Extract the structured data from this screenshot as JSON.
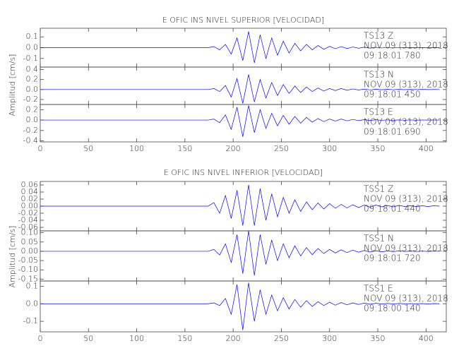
{
  "chart_data": [
    {
      "type": "line",
      "title": "E OFIC INS NIVEL SUPERIOR [VELOCIDAD]",
      "y_label": "Amplitud [cm/s]",
      "color": "#0000ff",
      "xlim": [
        0,
        421
      ],
      "xticks": [
        0,
        50,
        100,
        150,
        200,
        250,
        300,
        350,
        400
      ],
      "x": [
        0,
        6,
        12,
        18,
        24,
        30,
        36,
        42,
        48,
        54,
        60,
        66,
        72,
        78,
        84,
        90,
        96,
        102,
        108,
        114,
        120,
        126,
        132,
        138,
        144,
        150,
        156,
        162,
        168,
        174,
        180,
        186,
        192,
        198,
        204,
        210,
        216,
        222,
        228,
        234,
        240,
        246,
        252,
        258,
        264,
        270,
        276,
        282,
        288,
        294,
        300,
        306,
        312,
        318,
        324,
        330,
        336,
        342,
        348,
        354,
        360,
        366,
        372,
        378,
        384,
        390,
        396,
        402,
        408,
        414
      ],
      "panels": [
        {
          "ylim": [
            -0.18,
            0.18
          ],
          "yticks": [
            0.1,
            {
              "value": 0,
              "label": "0.0"
            },
            -0.1
          ],
          "annotations": [
            "TS13   Z",
            "NOV 09 (313), 2018",
            "09:18:01.780"
          ],
          "values": [
            0,
            0,
            0,
            0,
            0,
            0,
            0,
            0,
            0,
            0,
            0,
            0,
            0,
            0,
            0,
            0,
            0,
            0,
            0,
            0,
            0,
            0,
            0,
            0,
            0,
            0,
            0,
            0,
            0,
            0,
            0.01,
            -0.02,
            0.03,
            -0.06,
            0.09,
            -0.12,
            0.15,
            -0.14,
            0.12,
            -0.1,
            0.09,
            -0.07,
            0.06,
            -0.05,
            0.04,
            -0.03,
            0.03,
            -0.02,
            0.02,
            -0.015,
            0.012,
            -0.01,
            0.01,
            -0.008,
            0.006,
            -0.005,
            0.004,
            -0.004,
            0.003,
            -0.003,
            0.002,
            -0.002,
            0.002,
            -0.001,
            0.001,
            -0.001,
            0.001,
            -0.001,
            0.001,
            0
          ]
        },
        {
          "ylim": [
            -0.3,
            0.45
          ],
          "yticks": [
            0.4,
            0.2,
            {
              "value": 0,
              "label": "0.0"
            },
            -0.2
          ],
          "annotations": [
            "TS13   N",
            "NOV 09 (313), 2018",
            "09:18:01.450"
          ],
          "values": [
            0,
            0,
            0,
            0,
            0,
            0,
            0,
            0,
            0,
            0,
            0,
            0,
            0,
            0,
            0,
            0,
            0,
            0,
            0,
            0,
            0,
            0,
            0,
            0,
            0,
            0,
            0,
            0,
            0,
            0,
            0.02,
            -0.04,
            0.08,
            -0.15,
            0.22,
            -0.28,
            0.3,
            -0.25,
            0.2,
            -0.17,
            0.14,
            -0.12,
            0.1,
            -0.08,
            0.07,
            -0.06,
            0.05,
            -0.04,
            0.03,
            -0.03,
            0.02,
            -0.02,
            0.02,
            -0.015,
            0.012,
            -0.01,
            0.008,
            -0.007,
            0.006,
            -0.005,
            0.004,
            -0.004,
            0.003,
            -0.003,
            0.002,
            -0.002,
            0.002,
            -0.001,
            0.001,
            0
          ]
        },
        {
          "ylim": [
            -0.42,
            0.3
          ],
          "yticks": [
            0.2,
            {
              "value": 0,
              "label": "0.0"
            },
            -0.2,
            -0.4
          ],
          "annotations": [
            "TS13   E",
            "NOV 09 (313), 2018",
            "09:18:01.690"
          ],
          "values": [
            0,
            0,
            0,
            0,
            0,
            0,
            0,
            0,
            0,
            0,
            0,
            0,
            0,
            0,
            0,
            0,
            0,
            0,
            0,
            0,
            0,
            0,
            0,
            0,
            0,
            0,
            0,
            0,
            0,
            0,
            0.02,
            -0.05,
            0.1,
            -0.18,
            0.25,
            -0.32,
            0.28,
            -0.24,
            0.2,
            -0.16,
            0.13,
            -0.11,
            0.09,
            -0.08,
            0.07,
            -0.06,
            0.05,
            -0.04,
            0.03,
            -0.03,
            0.02,
            -0.02,
            0.02,
            -0.015,
            0.012,
            -0.01,
            0.008,
            -0.007,
            0.006,
            -0.005,
            0.004,
            -0.004,
            0.003,
            -0.003,
            0.002,
            -0.002,
            0.002,
            -0.001,
            0.001,
            0
          ]
        }
      ]
    },
    {
      "type": "line",
      "title": "E OFIC INS NIVEL INFERIOR [VELOCIDAD]",
      "y_label": "Amplitud [cm/s]",
      "color": "#0000ff",
      "xlim": [
        0,
        421
      ],
      "xticks": [
        0,
        50,
        100,
        150,
        200,
        250,
        300,
        350,
        400
      ],
      "x": [
        0,
        6,
        12,
        18,
        24,
        30,
        36,
        42,
        48,
        54,
        60,
        66,
        72,
        78,
        84,
        90,
        96,
        102,
        108,
        114,
        120,
        126,
        132,
        138,
        144,
        150,
        156,
        162,
        168,
        174,
        180,
        186,
        192,
        198,
        204,
        210,
        216,
        222,
        228,
        234,
        240,
        246,
        252,
        258,
        264,
        270,
        276,
        282,
        288,
        294,
        300,
        306,
        312,
        318,
        324,
        330,
        336,
        342,
        348,
        354,
        360,
        366,
        372,
        378,
        384,
        390,
        396,
        402,
        408,
        414
      ],
      "panels": [
        {
          "ylim": [
            -0.07,
            0.07
          ],
          "yticks": [
            0.06,
            0.04,
            0.02,
            {
              "value": 0,
              "label": "0.00"
            },
            -0.02,
            -0.04,
            -0.06
          ],
          "annotations": [
            "TSS1   Z",
            "NOV 09 (313), 2018",
            "09:18:01.440"
          ],
          "values": [
            0,
            0,
            0,
            0,
            0,
            0,
            0,
            0,
            0,
            0,
            0,
            0,
            0,
            0,
            0,
            0,
            0,
            0,
            0,
            0,
            0,
            0,
            0,
            0,
            0,
            0,
            0,
            0,
            0,
            0,
            0.01,
            -0.02,
            0.03,
            -0.035,
            0.045,
            -0.055,
            0.06,
            -0.055,
            0.05,
            -0.04,
            0.035,
            -0.03,
            0.025,
            -0.02,
            0.018,
            -0.015,
            0.012,
            -0.01,
            0.009,
            -0.008,
            0.007,
            -0.006,
            0.005,
            -0.005,
            0.004,
            -0.004,
            0.003,
            -0.003,
            0.003,
            -0.002,
            0.002,
            -0.002,
            0.002,
            -0.001,
            0.001,
            -0.001,
            0.001,
            -0.001,
            0.001,
            0
          ]
        },
        {
          "ylim": [
            -0.16,
            0.11
          ],
          "yticks": [
            {
              "value": 0.1,
              "label": "0.10"
            },
            0.05,
            {
              "value": 0,
              "label": "0.00"
            },
            -0.05,
            {
              "value": -0.1,
              "label": "-0.10"
            },
            -0.15
          ],
          "annotations": [
            "TSS1   N",
            "NOV 09 (313), 2018",
            "09:18:01.720"
          ],
          "values": [
            0,
            0,
            0,
            0,
            0,
            0,
            0,
            0,
            0,
            0,
            0,
            0,
            0,
            0,
            0,
            0,
            0,
            0,
            0,
            0,
            0,
            0,
            0,
            0,
            0,
            0,
            0,
            0,
            0,
            0,
            0.01,
            -0.02,
            0.04,
            -0.06,
            0.09,
            -0.12,
            0.11,
            -0.13,
            0.09,
            -0.07,
            0.06,
            -0.05,
            0.04,
            -0.035,
            0.03,
            -0.025,
            0.02,
            -0.018,
            0.015,
            -0.012,
            0.01,
            -0.009,
            0.008,
            -0.007,
            0.006,
            -0.005,
            0.004,
            -0.004,
            0.003,
            -0.003,
            0.002,
            -0.002,
            0.002,
            -0.001,
            0.001,
            -0.001,
            0.001,
            -0.001,
            0.001,
            0
          ]
        },
        {
          "ylim": [
            -0.16,
            0.13
          ],
          "yticks": [
            0.1,
            {
              "value": 0,
              "label": "0.0"
            },
            -0.1
          ],
          "annotations": [
            "TSS1   E",
            "NOV 09 (313), 2018",
            "09:18:00.140"
          ],
          "values": [
            0,
            0,
            0,
            0,
            0,
            0,
            0,
            0,
            0,
            0,
            0,
            0,
            0,
            0,
            0,
            0,
            0,
            0,
            0,
            0,
            0,
            0,
            0,
            0,
            0,
            0,
            0,
            0,
            0,
            0,
            0.005,
            -0.01,
            0.03,
            -0.06,
            0.11,
            -0.15,
            0.12,
            -0.1,
            0.08,
            -0.06,
            0.05,
            -0.04,
            0.035,
            -0.03,
            0.025,
            -0.02,
            0.018,
            -0.015,
            0.012,
            -0.01,
            0.009,
            -0.008,
            0.007,
            -0.006,
            0.005,
            -0.004,
            0.004,
            -0.003,
            0.003,
            -0.002,
            0.002,
            -0.002,
            0.002,
            -0.001,
            0.001,
            -0.001,
            0.001,
            -0.001,
            0.001,
            0
          ]
        }
      ]
    }
  ]
}
